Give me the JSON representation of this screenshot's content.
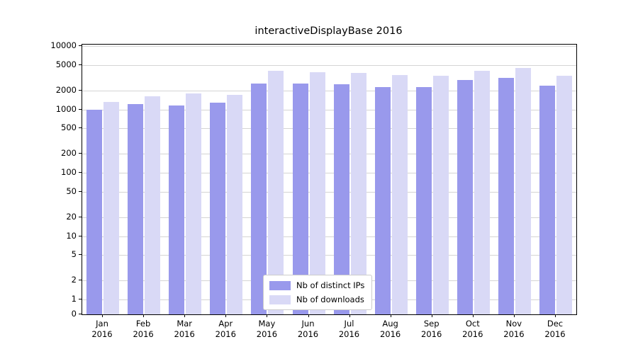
{
  "title": "interactiveDisplayBase 2016",
  "colors": {
    "distinct_ips_bar": "#9999ec",
    "downloads_bar": "#d9d9f6",
    "gridline": "#d4d4d4",
    "axis": "#000000",
    "legend_border": "#cccccc",
    "background": "#ffffff"
  },
  "chart_data": {
    "type": "bar",
    "title": "interactiveDisplayBase 2016",
    "categories": [
      "Jan 2016",
      "Feb 2016",
      "Mar 2016",
      "Apr 2016",
      "May 2016",
      "Jun 2016",
      "Jul 2016",
      "Aug 2016",
      "Sep 2016",
      "Oct 2016",
      "Nov 2016",
      "Dec 2016"
    ],
    "series": [
      {
        "name": "Nb of distinct IPs",
        "color": "#9999ec",
        "values": [
          980,
          1200,
          1150,
          1280,
          2550,
          2530,
          2480,
          2280,
          2260,
          2900,
          3150,
          2380
        ]
      },
      {
        "name": "Nb of downloads",
        "color": "#d9d9f6",
        "values": [
          1320,
          1620,
          1800,
          1700,
          4100,
          3900,
          3800,
          3450,
          3400,
          4050,
          4500,
          3400
        ]
      }
    ],
    "xlabel": "",
    "ylabel": "",
    "yscale": "symlog",
    "yticks": [
      0,
      1,
      2,
      5,
      10,
      20,
      50,
      100,
      200,
      500,
      1000,
      2000,
      5000,
      10000
    ],
    "ylim": [
      0,
      10000
    ],
    "grid": true,
    "legend_position": "bottom-center"
  }
}
